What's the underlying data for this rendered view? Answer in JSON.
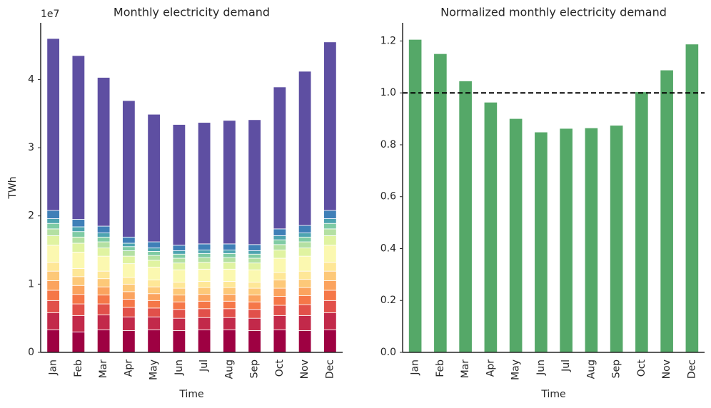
{
  "chart_data": [
    {
      "type": "stacked_bar",
      "title": "Monthly electricity demand",
      "categories": [
        "Jan",
        "Feb",
        "Mar",
        "Apr",
        "May",
        "Jun",
        "Jul",
        "Aug",
        "Sep",
        "Oct",
        "Nov",
        "Dec"
      ],
      "xlabel": "Time",
      "ylabel": "TWh",
      "y_offset_label": "1e7",
      "ylim": [
        0,
        4.83
      ],
      "yticks": [
        0,
        1,
        2,
        3,
        4
      ],
      "series": [
        {
          "color": "#9e0142",
          "values": [
            0.33,
            0.3,
            0.33,
            0.32,
            0.33,
            0.32,
            0.33,
            0.33,
            0.32,
            0.33,
            0.32,
            0.33
          ]
        },
        {
          "color": "#c2294a",
          "values": [
            0.25,
            0.24,
            0.22,
            0.2,
            0.19,
            0.18,
            0.18,
            0.18,
            0.18,
            0.21,
            0.22,
            0.25
          ]
        },
        {
          "color": "#e1504a",
          "values": [
            0.18,
            0.17,
            0.16,
            0.14,
            0.13,
            0.13,
            0.13,
            0.13,
            0.13,
            0.15,
            0.16,
            0.18
          ]
        },
        {
          "color": "#f57748",
          "values": [
            0.15,
            0.14,
            0.13,
            0.12,
            0.11,
            0.11,
            0.11,
            0.11,
            0.11,
            0.13,
            0.13,
            0.15
          ]
        },
        {
          "color": "#fba35e",
          "values": [
            0.14,
            0.13,
            0.12,
            0.11,
            0.1,
            0.1,
            0.1,
            0.1,
            0.1,
            0.12,
            0.12,
            0.14
          ]
        },
        {
          "color": "#fdc878",
          "values": [
            0.14,
            0.13,
            0.12,
            0.11,
            0.1,
            0.1,
            0.1,
            0.1,
            0.1,
            0.12,
            0.12,
            0.14
          ]
        },
        {
          "color": "#fee797",
          "values": [
            0.13,
            0.12,
            0.11,
            0.1,
            0.1,
            0.09,
            0.09,
            0.09,
            0.09,
            0.11,
            0.12,
            0.13
          ]
        },
        {
          "color": "#fbf8b0",
          "values": [
            0.25,
            0.24,
            0.22,
            0.2,
            0.19,
            0.18,
            0.18,
            0.18,
            0.18,
            0.21,
            0.22,
            0.25
          ]
        },
        {
          "color": "#e0f3a1",
          "values": [
            0.14,
            0.13,
            0.12,
            0.11,
            0.1,
            0.1,
            0.1,
            0.1,
            0.1,
            0.12,
            0.12,
            0.14
          ]
        },
        {
          "color": "#b3e0a2",
          "values": [
            0.1,
            0.09,
            0.09,
            0.08,
            0.07,
            0.07,
            0.07,
            0.07,
            0.07,
            0.08,
            0.09,
            0.1
          ]
        },
        {
          "color": "#7fcba4",
          "values": [
            0.08,
            0.08,
            0.07,
            0.06,
            0.06,
            0.06,
            0.06,
            0.06,
            0.06,
            0.07,
            0.07,
            0.08
          ]
        },
        {
          "color": "#4ea4b0",
          "values": [
            0.07,
            0.07,
            0.06,
            0.05,
            0.05,
            0.05,
            0.05,
            0.05,
            0.05,
            0.06,
            0.06,
            0.07
          ]
        },
        {
          "color": "#3f7fb7",
          "values": [
            0.12,
            0.11,
            0.1,
            0.09,
            0.09,
            0.08,
            0.09,
            0.09,
            0.09,
            0.1,
            0.11,
            0.12
          ]
        },
        {
          "color": "#5e4fa2",
          "values": [
            2.52,
            2.4,
            2.18,
            2.0,
            1.87,
            1.77,
            1.78,
            1.81,
            1.83,
            2.08,
            2.26,
            2.47
          ]
        }
      ]
    },
    {
      "type": "bar",
      "title": "Normalized monthly electricity demand",
      "categories": [
        "Jan",
        "Feb",
        "Mar",
        "Apr",
        "May",
        "Jun",
        "Jul",
        "Aug",
        "Sep",
        "Oct",
        "Nov",
        "Dec"
      ],
      "xlabel": "Time",
      "color": "#55a868",
      "values": [
        1.205,
        1.15,
        1.045,
        0.963,
        0.9,
        0.848,
        0.862,
        0.864,
        0.874,
        1.003,
        1.087,
        1.187
      ],
      "ylim": [
        0,
        1.27
      ],
      "yticks": [
        {
          "value": 0,
          "label": "0.0"
        },
        0.2,
        0.4,
        0.6,
        0.8,
        {
          "value": 1,
          "label": "1.0"
        },
        1.2
      ],
      "reference_line": 1
    }
  ]
}
